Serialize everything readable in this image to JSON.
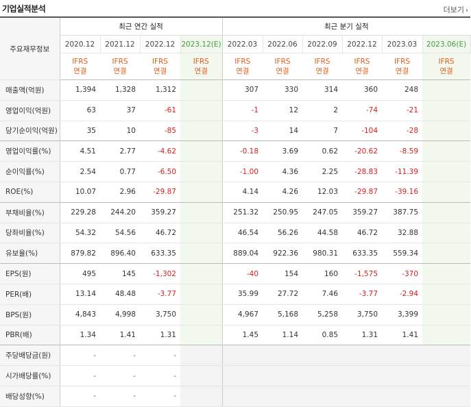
{
  "header": {
    "title": "기업실적분석",
    "more_label": "더보기",
    "more_icon": "chevron-right-icon"
  },
  "table": {
    "corner_label": "주요재무정보",
    "group_annual": "최근 연간 실적",
    "group_quarter": "최근 분기 실적",
    "periods": [
      "2020.12",
      "2021.12",
      "2022.12",
      "2023.12(E)",
      "2022.03",
      "2022.06",
      "2022.09",
      "2022.12",
      "2023.03",
      "2023.06(E)"
    ],
    "ifrs_top": "IFRS",
    "ifrs_bottom": "연결",
    "rows": [
      {
        "label": "매출액(억원)",
        "values": [
          "1,394",
          "1,328",
          "1,312",
          "",
          "307",
          "330",
          "314",
          "360",
          "248",
          ""
        ]
      },
      {
        "label": "영업이익(억원)",
        "values": [
          "63",
          "37",
          "-61",
          "",
          "-1",
          "12",
          "2",
          "-74",
          "-21",
          ""
        ]
      },
      {
        "label": "당기순이익(억원)",
        "values": [
          "35",
          "10",
          "-85",
          "",
          "-3",
          "14",
          "7",
          "-104",
          "-28",
          ""
        ]
      },
      {
        "label": "영업이익률(%)",
        "values": [
          "4.51",
          "2.77",
          "-4.62",
          "",
          "-0.18",
          "3.69",
          "0.62",
          "-20.62",
          "-8.59",
          ""
        ]
      },
      {
        "label": "순이익률(%)",
        "values": [
          "2.54",
          "0.77",
          "-6.50",
          "",
          "-1.00",
          "4.36",
          "2.25",
          "-28.83",
          "-11.39",
          ""
        ]
      },
      {
        "label": "ROE(%)",
        "values": [
          "10.07",
          "2.96",
          "-29.87",
          "",
          "4.14",
          "4.26",
          "12.03",
          "-29.87",
          "-39.16",
          ""
        ]
      },
      {
        "label": "부채비율(%)",
        "values": [
          "229.28",
          "244.20",
          "359.27",
          "",
          "251.32",
          "250.95",
          "247.05",
          "359.27",
          "387.75",
          ""
        ]
      },
      {
        "label": "당좌비율(%)",
        "values": [
          "54.32",
          "54.56",
          "46.72",
          "",
          "46.54",
          "56.26",
          "44.58",
          "46.72",
          "32.88",
          ""
        ]
      },
      {
        "label": "유보율(%)",
        "values": [
          "879.82",
          "896.40",
          "633.35",
          "",
          "889.04",
          "922.36",
          "980.31",
          "633.35",
          "559.34",
          ""
        ]
      },
      {
        "label": "EPS(원)",
        "values": [
          "495",
          "145",
          "-1,302",
          "",
          "-40",
          "154",
          "160",
          "-1,575",
          "-370",
          ""
        ]
      },
      {
        "label": "PER(배)",
        "values": [
          "13.14",
          "48.48",
          "-3.77",
          "",
          "35.99",
          "27.72",
          "7.46",
          "-3.77",
          "-2.94",
          ""
        ]
      },
      {
        "label": "BPS(원)",
        "values": [
          "4,843",
          "4,998",
          "3,750",
          "",
          "4,967",
          "5,168",
          "5,258",
          "3,750",
          "3,399",
          ""
        ]
      },
      {
        "label": "PBR(배)",
        "values": [
          "1.34",
          "1.41",
          "1.31",
          "",
          "1.45",
          "1.14",
          "0.85",
          "1.31",
          "1.41",
          ""
        ]
      },
      {
        "label": "주당배당금(원)",
        "values": [
          "-",
          "-",
          "-",
          "",
          "",
          "",
          "",
          "",
          "",
          ""
        ]
      },
      {
        "label": "시가배당률(%)",
        "values": [
          "-",
          "-",
          "-",
          "",
          "",
          "",
          "",
          "",
          "",
          ""
        ]
      },
      {
        "label": "배당성향(%)",
        "values": [
          "-",
          "-",
          "-",
          "",
          "",
          "",
          "",
          "",
          "",
          ""
        ]
      }
    ]
  },
  "colors": {
    "negative": "#d51f1f",
    "ifrs": "#e25d18",
    "estimate_text": "#3f9d3f",
    "estimate_bg": "#f2f8ee"
  }
}
